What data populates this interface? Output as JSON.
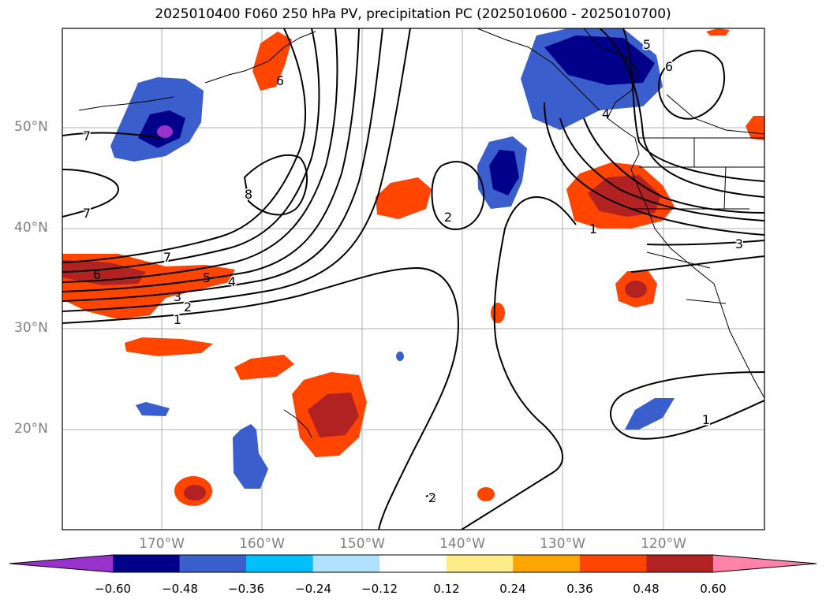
{
  "title": "2025010400 F060 250 hPa PV, precipitation PC (2025010600 - 2025010700)",
  "lat_labels": [
    "50°N",
    "40°N",
    "30°N",
    "20°N"
  ],
  "lon_labels": [
    "170°W",
    "160°W",
    "150°W",
    "140°W",
    "130°W",
    "120°W"
  ],
  "colorbar": {
    "ticks": [
      "−0.60",
      "−0.48",
      "−0.36",
      "−0.24",
      "−0.12",
      "0.12",
      "0.24",
      "0.36",
      "0.48",
      "0.60"
    ],
    "colors": [
      "#9932cc",
      "#00008b",
      "#3a5fcd",
      "#00bfff",
      "#b0e2ff",
      "#ffffff",
      "#ffec8b",
      "#ffa500",
      "#ff4500",
      "#b22222",
      "#ff82ab"
    ]
  },
  "contour_labels": [
    {
      "text": "7"
    },
    {
      "text": "7"
    },
    {
      "text": "8"
    },
    {
      "text": "7"
    },
    {
      "text": "6"
    },
    {
      "text": "5"
    },
    {
      "text": "4"
    },
    {
      "text": "3"
    },
    {
      "text": "2"
    },
    {
      "text": "1"
    },
    {
      "text": "2"
    },
    {
      "text": "2"
    },
    {
      "text": "1"
    },
    {
      "text": "3"
    },
    {
      "text": "1"
    },
    {
      "text": "5"
    },
    {
      "text": "6"
    },
    {
      "text": "4"
    },
    {
      "text": "6"
    }
  ]
}
